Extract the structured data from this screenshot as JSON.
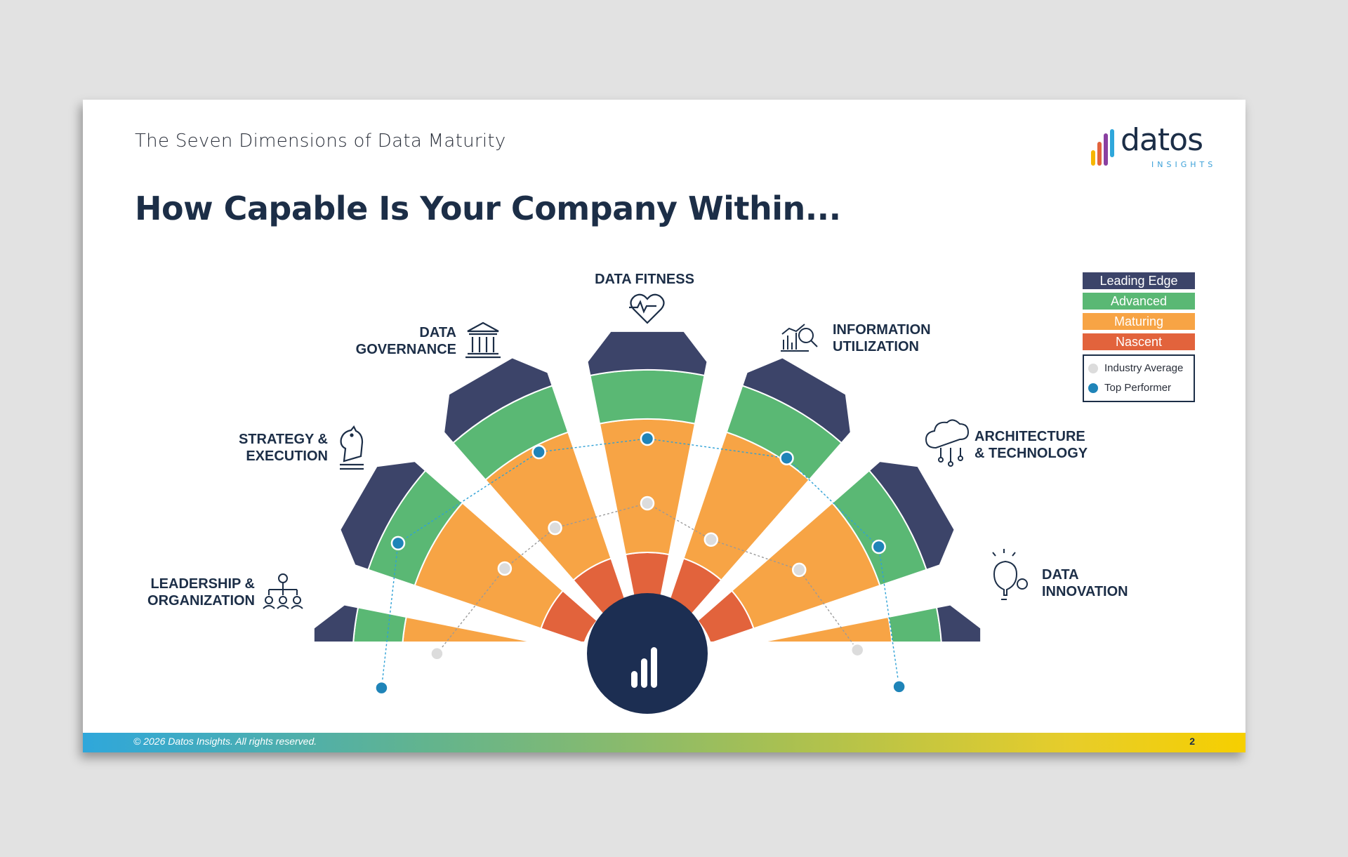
{
  "slide": {
    "subtitle": "The Seven Dimensions of Data Maturity",
    "title": "How Capable Is Your Company Within...",
    "logo": {
      "word": "datos",
      "sub": "INSIGHTS"
    },
    "footer": {
      "copyright": "© 2026 Datos Insights. All rights reserved.",
      "page": "2"
    }
  },
  "legend": {
    "levels": [
      {
        "label": "Leading Edge",
        "color": "#3c4469"
      },
      {
        "label": "Advanced",
        "color": "#5ab874"
      },
      {
        "label": "Maturing",
        "color": "#f7a445"
      },
      {
        "label": "Nascent",
        "color": "#e2633c"
      }
    ],
    "markers": [
      {
        "label": "Industry Average",
        "color": "#dcdcdc"
      },
      {
        "label": "Top Performer",
        "color": "#1f84b8"
      }
    ]
  },
  "dimensions": [
    {
      "line1": "LEADERSHIP &",
      "line2": "ORGANIZATION",
      "icon": "org-chart-icon"
    },
    {
      "line1": "STRATEGY &",
      "line2": "EXECUTION",
      "icon": "chess-knight-icon"
    },
    {
      "line1": "DATA",
      "line2": "GOVERNANCE",
      "icon": "building-columns-icon"
    },
    {
      "line1": "DATA FITNESS",
      "line2": "",
      "icon": "heart-pulse-icon"
    },
    {
      "line1": "INFORMATION",
      "line2": "UTILIZATION",
      "icon": "analytics-icon"
    },
    {
      "line1": "ARCHITECTURE",
      "line2": "& TECHNOLOGY",
      "icon": "cloud-network-icon"
    },
    {
      "line1": "DATA",
      "line2": "INNOVATION",
      "icon": "lightbulb-gear-icon"
    }
  ],
  "colors": {
    "leading": "#3c4469",
    "advanced": "#5ab874",
    "maturing": "#f7a445",
    "nascent": "#e2633c",
    "hub": "#1c2e52",
    "industry": "#dcdcdc",
    "top": "#1f84b8",
    "link": "#2fa1d6"
  }
}
